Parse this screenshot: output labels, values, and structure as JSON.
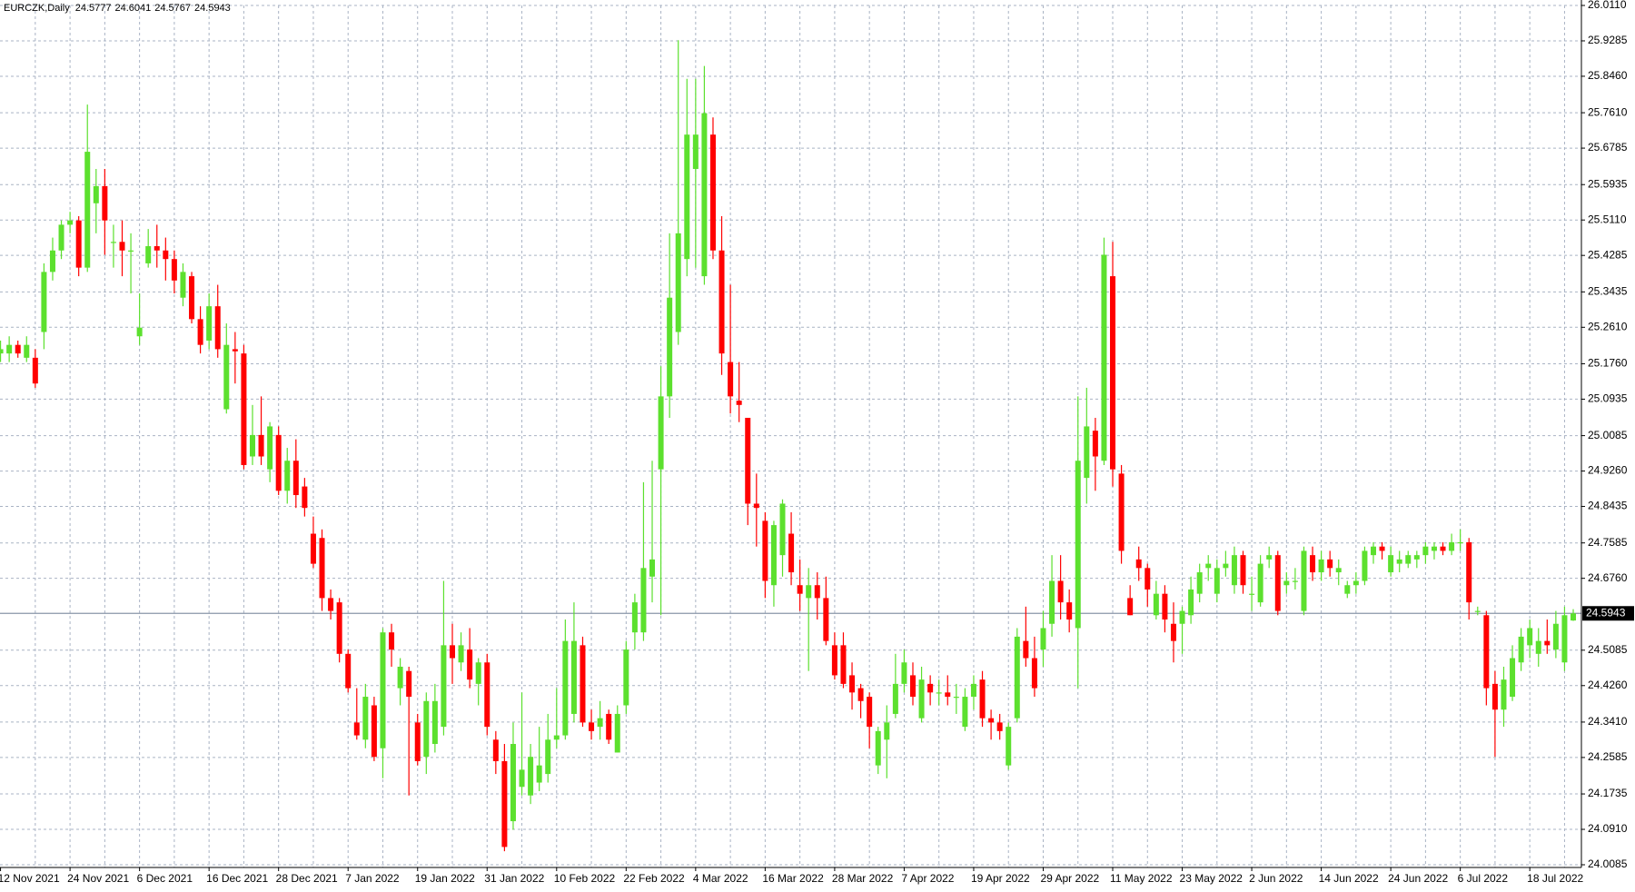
{
  "chart_data": {
    "type": "candlestick",
    "title": "EURCZK,Daily",
    "up_color": "#5ce02e",
    "down_color": "#ff0000",
    "grid": true,
    "ylim": [
      24.0085,
      26.011
    ],
    "yticks": [
      {
        "value": 26.011,
        "label": "26.0110"
      },
      25.9285,
      {
        "value": 25.846,
        "label": "25.8460"
      },
      {
        "value": 25.761,
        "label": "25.7610"
      },
      25.6785,
      25.5935,
      {
        "value": 25.511,
        "label": "25.5110"
      },
      25.4285,
      25.3435,
      {
        "value": 25.261,
        "label": "25.2610"
      },
      {
        "value": 25.176,
        "label": "25.1760"
      },
      25.0935,
      25.0085,
      {
        "value": 24.926,
        "label": "24.9260"
      },
      24.8435,
      24.7585,
      {
        "value": 24.676,
        "label": "24.6760"
      },
      24.5085,
      {
        "value": 24.426,
        "label": "24.4260"
      },
      {
        "value": 24.341,
        "label": "24.3410"
      },
      24.2585,
      24.1735,
      {
        "value": 24.091,
        "label": "24.0910"
      },
      24.0085
    ],
    "categories": [
      "12 Nov 2021",
      null,
      null,
      null,
      null,
      null,
      null,
      null,
      "24 Nov 2021",
      null,
      null,
      null,
      null,
      null,
      null,
      null,
      "6 Dec 2021",
      null,
      null,
      null,
      null,
      null,
      null,
      null,
      "16 Dec 2021",
      null,
      null,
      null,
      null,
      null,
      null,
      null,
      "28 Dec 2021",
      null,
      null,
      null,
      null,
      null,
      null,
      null,
      "7 Jan 2022",
      null,
      null,
      null,
      null,
      null,
      null,
      null,
      "19 Jan 2022",
      null,
      null,
      null,
      null,
      null,
      null,
      null,
      "31 Jan 2022",
      null,
      null,
      null,
      null,
      null,
      null,
      null,
      "10 Feb 2022",
      null,
      null,
      null,
      null,
      null,
      null,
      null,
      "22 Feb 2022",
      null,
      null,
      null,
      null,
      null,
      null,
      null,
      "4 Mar 2022",
      null,
      null,
      null,
      null,
      null,
      null,
      null,
      "16 Mar 2022",
      null,
      null,
      null,
      null,
      null,
      null,
      null,
      "28 Mar 2022",
      null,
      null,
      null,
      null,
      null,
      null,
      null,
      "7 Apr 2022",
      null,
      null,
      null,
      null,
      null,
      null,
      null,
      "19 Apr 2022",
      null,
      null,
      null,
      null,
      null,
      null,
      null,
      "29 Apr 2022",
      null,
      null,
      null,
      null,
      null,
      null,
      null,
      "11 May 2022",
      null,
      null,
      null,
      null,
      null,
      null,
      null,
      "23 May 2022",
      null,
      null,
      null,
      null,
      null,
      null,
      null,
      "2 Jun 2022",
      null,
      null,
      null,
      null,
      null,
      null,
      null,
      "14 Jun 2022",
      null,
      null,
      null,
      null,
      null,
      null,
      null,
      "24 Jun 2022",
      null,
      null,
      null,
      null,
      null,
      null,
      null,
      "6 Jul 2022",
      null,
      null,
      null,
      null,
      null,
      null,
      null,
      "18 Jul 2022",
      null,
      null,
      null,
      null,
      null
    ],
    "ohlc": [
      [
        25.2,
        25.23,
        25.18,
        25.21
      ],
      [
        25.2,
        25.24,
        25.18,
        25.22
      ],
      [
        25.22,
        25.23,
        25.19,
        25.2
      ],
      [
        25.19,
        25.24,
        25.18,
        25.22
      ],
      [
        25.19,
        25.21,
        25.12,
        25.13
      ],
      [
        25.25,
        25.41,
        25.21,
        25.39
      ],
      [
        25.39,
        25.47,
        25.37,
        25.44
      ],
      [
        25.44,
        25.51,
        25.42,
        25.5
      ],
      [
        25.5,
        25.53,
        25.48,
        25.51
      ],
      [
        25.51,
        25.52,
        25.38,
        25.4
      ],
      [
        25.4,
        25.78,
        25.39,
        25.67
      ],
      [
        25.55,
        25.63,
        25.48,
        25.59
      ],
      [
        25.59,
        25.63,
        25.43,
        25.51
      ],
      [
        25.46,
        25.5,
        25.4,
        25.46
      ],
      [
        25.46,
        25.51,
        25.38,
        25.44
      ],
      [
        25.44,
        25.48,
        25.34,
        25.44
      ],
      [
        25.24,
        25.34,
        25.22,
        25.26
      ],
      [
        25.41,
        25.49,
        25.4,
        25.45
      ],
      [
        25.45,
        25.5,
        25.4,
        25.44
      ],
      [
        25.44,
        25.47,
        25.37,
        25.42
      ],
      [
        25.42,
        25.44,
        25.34,
        25.37
      ],
      [
        25.33,
        25.41,
        25.31,
        25.39
      ],
      [
        25.38,
        25.39,
        25.27,
        25.28
      ],
      [
        25.28,
        25.31,
        25.2,
        25.22
      ],
      [
        25.23,
        25.34,
        25.21,
        25.31
      ],
      [
        25.31,
        25.36,
        25.19,
        25.21
      ],
      [
        25.07,
        25.27,
        25.06,
        25.22
      ],
      [
        25.21,
        25.25,
        25.13,
        25.205
      ],
      [
        25.2,
        25.22,
        24.93,
        24.94
      ],
      [
        24.96,
        25.08,
        24.94,
        25.01
      ],
      [
        25.01,
        25.1,
        24.94,
        24.96
      ],
      [
        24.93,
        25.04,
        24.9,
        25.03
      ],
      [
        25.01,
        25.03,
        24.87,
        24.88
      ],
      [
        24.88,
        24.98,
        24.85,
        24.95
      ],
      [
        24.95,
        25.0,
        24.84,
        24.87
      ],
      [
        24.89,
        24.91,
        24.82,
        24.84
      ],
      [
        24.78,
        24.82,
        24.7,
        24.71
      ],
      [
        24.77,
        24.79,
        24.6,
        24.63
      ],
      [
        24.63,
        24.65,
        24.58,
        24.6
      ],
      [
        24.62,
        24.63,
        24.48,
        24.5
      ],
      [
        24.5,
        24.51,
        24.41,
        24.42
      ],
      [
        24.34,
        24.42,
        24.3,
        24.31
      ],
      [
        24.3,
        24.43,
        24.28,
        24.4
      ],
      [
        24.38,
        24.4,
        24.25,
        24.26
      ],
      [
        24.28,
        24.56,
        24.21,
        24.55
      ],
      [
        24.55,
        24.57,
        24.47,
        24.51
      ],
      [
        24.42,
        24.49,
        24.38,
        24.47
      ],
      [
        24.46,
        24.47,
        24.17,
        24.4
      ],
      [
        24.34,
        24.36,
        24.24,
        24.25
      ],
      [
        24.26,
        24.41,
        24.22,
        24.39
      ],
      [
        24.29,
        24.43,
        24.27,
        24.39
      ],
      [
        24.33,
        24.67,
        24.31,
        24.52
      ],
      [
        24.52,
        24.57,
        24.43,
        24.49
      ],
      [
        24.48,
        24.55,
        24.46,
        24.52
      ],
      [
        24.51,
        24.56,
        24.42,
        24.44
      ],
      [
        24.43,
        24.49,
        24.38,
        24.48
      ],
      [
        24.48,
        24.5,
        24.31,
        24.33
      ],
      [
        24.3,
        24.32,
        24.22,
        24.25
      ],
      [
        24.25,
        24.29,
        24.04,
        24.05
      ],
      [
        24.11,
        24.34,
        24.09,
        24.29
      ],
      [
        24.19,
        24.41,
        24.17,
        24.23
      ],
      [
        24.17,
        24.29,
        24.15,
        24.26
      ],
      [
        24.2,
        24.33,
        24.18,
        24.24
      ],
      [
        24.22,
        24.36,
        24.2,
        24.3
      ],
      [
        24.3,
        24.42,
        24.28,
        24.31
      ],
      [
        24.31,
        24.58,
        24.3,
        24.53
      ],
      [
        24.36,
        24.62,
        24.34,
        24.53
      ],
      [
        24.52,
        24.54,
        24.33,
        24.34
      ],
      [
        24.34,
        24.37,
        24.3,
        24.32
      ],
      [
        24.33,
        24.39,
        24.3,
        24.35
      ],
      [
        24.36,
        24.37,
        24.29,
        24.3
      ],
      [
        24.27,
        24.38,
        24.27,
        24.36
      ],
      [
        24.38,
        24.53,
        24.36,
        24.51
      ],
      [
        24.55,
        24.64,
        24.51,
        24.62
      ],
      [
        24.55,
        24.9,
        24.53,
        24.7
      ],
      [
        24.68,
        24.95,
        24.62,
        24.72
      ],
      [
        24.93,
        25.17,
        24.59,
        25.1
      ],
      [
        25.1,
        25.48,
        25.05,
        25.33
      ],
      [
        25.25,
        25.93,
        25.22,
        25.48
      ],
      [
        25.42,
        25.84,
        25.38,
        25.71
      ],
      [
        25.63,
        25.84,
        25.4,
        25.71
      ],
      [
        25.38,
        25.87,
        25.36,
        25.76
      ],
      [
        25.71,
        25.75,
        25.42,
        25.44
      ],
      [
        25.44,
        25.52,
        25.15,
        25.2
      ],
      [
        25.18,
        25.36,
        25.06,
        25.1
      ],
      [
        25.09,
        25.18,
        25.04,
        25.08
      ],
      [
        25.05,
        25.05,
        24.8,
        24.85
      ],
      [
        24.85,
        24.92,
        24.75,
        24.84
      ],
      [
        24.81,
        24.83,
        24.63,
        24.67
      ],
      [
        24.66,
        24.81,
        24.61,
        24.8
      ],
      [
        24.73,
        24.86,
        24.68,
        24.85
      ],
      [
        24.78,
        24.83,
        24.66,
        24.69
      ],
      [
        24.66,
        24.72,
        24.6,
        24.64
      ],
      [
        24.63,
        24.7,
        24.46,
        24.66
      ],
      [
        24.66,
        24.69,
        24.58,
        24.63
      ],
      [
        24.63,
        24.68,
        24.52,
        24.53
      ],
      [
        24.52,
        24.55,
        24.44,
        24.45
      ],
      [
        24.52,
        24.55,
        24.42,
        24.43
      ],
      [
        24.45,
        24.48,
        24.37,
        24.41
      ],
      [
        24.42,
        24.43,
        24.35,
        24.39
      ],
      [
        24.4,
        24.41,
        24.28,
        24.33
      ],
      [
        24.24,
        24.33,
        24.22,
        24.32
      ],
      [
        24.3,
        24.38,
        24.21,
        24.34
      ],
      [
        24.36,
        24.5,
        24.35,
        24.43
      ],
      [
        24.43,
        24.51,
        24.41,
        24.48
      ],
      [
        24.45,
        24.48,
        24.38,
        24.4
      ],
      [
        24.35,
        24.47,
        24.34,
        24.44
      ],
      [
        24.43,
        24.45,
        24.38,
        24.41
      ],
      [
        24.41,
        24.44,
        24.38,
        24.41
      ],
      [
        24.41,
        24.45,
        24.38,
        24.4
      ],
      [
        24.4,
        24.43,
        24.36,
        24.4
      ],
      [
        24.33,
        24.42,
        24.32,
        24.4
      ],
      [
        24.4,
        24.45,
        24.37,
        24.43
      ],
      [
        24.44,
        24.46,
        24.33,
        24.35
      ],
      [
        24.35,
        24.37,
        24.3,
        24.34
      ],
      [
        24.34,
        24.36,
        24.3,
        24.32
      ],
      [
        24.24,
        24.34,
        24.23,
        24.33
      ],
      [
        24.35,
        24.56,
        24.34,
        24.54
      ],
      [
        24.53,
        24.61,
        24.47,
        24.49
      ],
      [
        24.49,
        24.54,
        24.4,
        24.42
      ],
      [
        24.51,
        24.6,
        24.47,
        24.56
      ],
      [
        24.57,
        24.73,
        24.54,
        24.67
      ],
      [
        24.67,
        24.73,
        24.58,
        24.62
      ],
      [
        24.62,
        24.65,
        24.55,
        24.58
      ],
      [
        24.56,
        25.1,
        24.42,
        24.95
      ],
      [
        24.91,
        25.12,
        24.85,
        25.03
      ],
      [
        25.02,
        25.05,
        24.88,
        24.96
      ],
      [
        24.95,
        25.47,
        24.94,
        25.43
      ],
      [
        25.38,
        25.46,
        24.89,
        24.93
      ],
      [
        24.92,
        24.94,
        24.71,
        24.74
      ],
      [
        24.63,
        24.66,
        24.59,
        24.59
      ],
      [
        24.72,
        24.75,
        24.67,
        24.7
      ],
      [
        24.7,
        24.71,
        24.61,
        24.65
      ],
      [
        24.59,
        24.67,
        24.58,
        24.64
      ],
      [
        24.64,
        24.66,
        24.55,
        24.58
      ],
      [
        24.57,
        24.62,
        24.48,
        24.53
      ],
      [
        24.57,
        24.61,
        24.5,
        24.6
      ],
      [
        24.59,
        24.68,
        24.57,
        24.65
      ],
      [
        24.64,
        24.71,
        24.62,
        24.69
      ],
      [
        24.7,
        24.73,
        24.67,
        24.71
      ],
      [
        24.64,
        24.72,
        24.62,
        24.7
      ],
      [
        24.7,
        24.74,
        24.68,
        24.71
      ],
      [
        24.66,
        24.75,
        24.64,
        24.73
      ],
      [
        24.73,
        24.74,
        24.64,
        24.66
      ],
      [
        24.64,
        24.68,
        24.6,
        24.64
      ],
      [
        24.62,
        24.73,
        24.61,
        24.71
      ],
      [
        24.72,
        24.75,
        24.7,
        24.73
      ],
      [
        24.73,
        24.74,
        24.59,
        24.6
      ],
      [
        24.66,
        24.69,
        24.64,
        24.67
      ],
      [
        24.67,
        24.7,
        24.65,
        24.67
      ],
      [
        24.6,
        24.75,
        24.59,
        24.74
      ],
      [
        24.73,
        24.75,
        24.67,
        24.69
      ],
      [
        24.69,
        24.74,
        24.67,
        24.72
      ],
      [
        24.72,
        24.74,
        24.68,
        24.7
      ],
      [
        24.69,
        24.72,
        24.66,
        24.7
      ],
      [
        24.64,
        24.67,
        24.63,
        24.66
      ],
      [
        24.66,
        24.69,
        24.64,
        24.67
      ],
      [
        24.67,
        24.75,
        24.66,
        24.74
      ],
      [
        24.73,
        24.76,
        24.71,
        24.75
      ],
      [
        24.75,
        24.76,
        24.72,
        24.74
      ],
      [
        24.69,
        24.75,
        24.68,
        24.73
      ],
      [
        24.71,
        24.74,
        24.69,
        24.72
      ],
      [
        24.71,
        24.74,
        24.7,
        24.73
      ],
      [
        24.72,
        24.74,
        24.7,
        24.73
      ],
      [
        24.73,
        24.76,
        24.71,
        24.75
      ],
      [
        24.74,
        24.76,
        24.72,
        24.75
      ],
      [
        24.75,
        24.76,
        24.73,
        24.74
      ],
      [
        24.74,
        24.78,
        24.73,
        24.76
      ],
      [
        24.76,
        24.79,
        24.74,
        24.76
      ],
      [
        24.76,
        24.77,
        24.58,
        24.62
      ],
      [
        24.6,
        24.61,
        24.59,
        24.6
      ],
      [
        24.59,
        24.6,
        24.38,
        24.42
      ],
      [
        24.43,
        24.46,
        24.26,
        24.37
      ],
      [
        24.37,
        24.47,
        24.33,
        24.44
      ],
      [
        24.4,
        24.52,
        24.39,
        24.49
      ],
      [
        24.48,
        24.56,
        24.46,
        24.54
      ],
      [
        24.52,
        24.58,
        24.49,
        24.56
      ],
      [
        24.5,
        24.56,
        24.47,
        24.53
      ],
      [
        24.53,
        24.58,
        24.5,
        24.52
      ],
      [
        24.51,
        24.6,
        24.49,
        24.57
      ],
      [
        24.48,
        24.61,
        24.46,
        24.59
      ],
      [
        24.5777,
        24.6041,
        24.5767,
        24.5943
      ]
    ]
  }
}
